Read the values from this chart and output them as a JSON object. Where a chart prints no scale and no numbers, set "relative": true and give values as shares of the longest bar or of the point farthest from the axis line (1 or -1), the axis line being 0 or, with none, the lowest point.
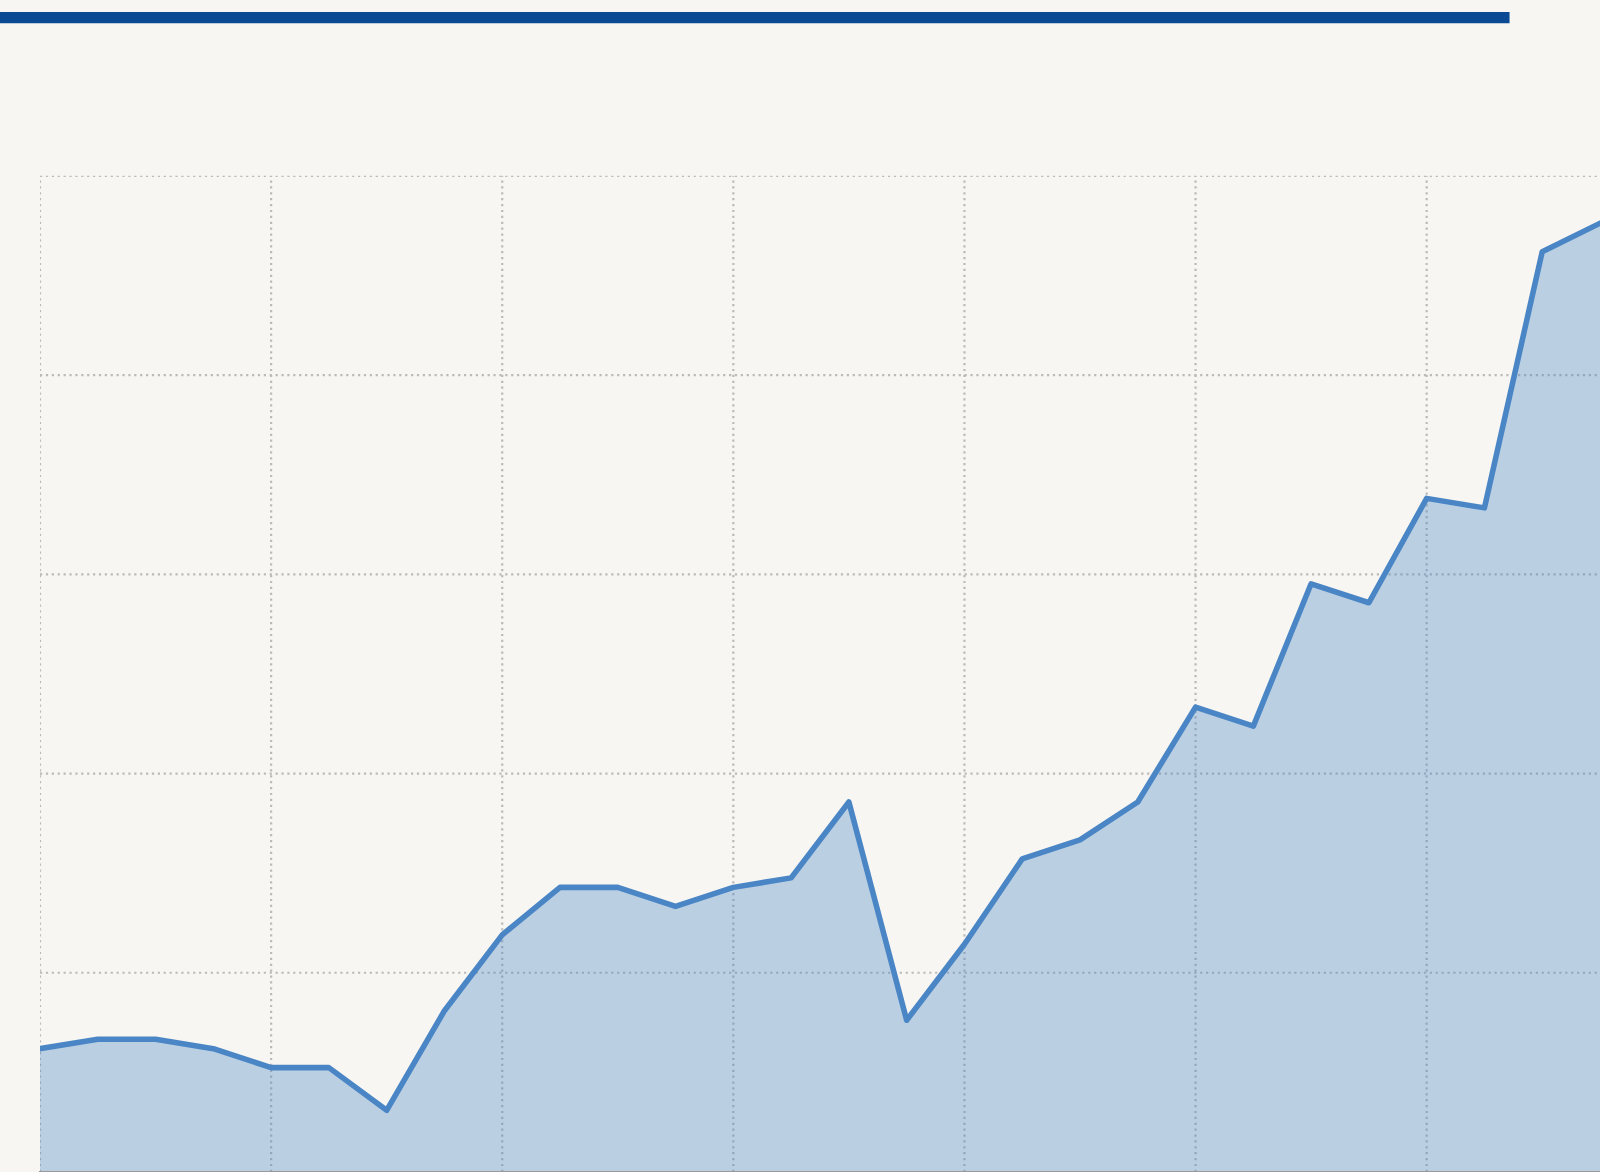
{
  "chart_data": {
    "type": "area",
    "relative": true,
    "grid": true,
    "color": "#4a86c5",
    "categories": [
      null,
      null,
      null,
      null,
      null,
      null,
      null,
      null,
      null,
      null,
      null,
      null,
      null,
      null,
      null,
      null,
      null,
      null,
      null,
      null,
      null,
      null,
      null,
      null,
      null,
      null,
      null,
      null
    ],
    "values": [
      0.13,
      0.14,
      0.14,
      0.13,
      0.11,
      0.11,
      0.065,
      0.17,
      0.25,
      0.3,
      0.3,
      0.28,
      0.3,
      0.31,
      0.39,
      0.16,
      0.24,
      0.33,
      0.35,
      0.39,
      0.49,
      0.47,
      0.62,
      0.6,
      0.71,
      0.7,
      0.97,
      1
    ]
  }
}
